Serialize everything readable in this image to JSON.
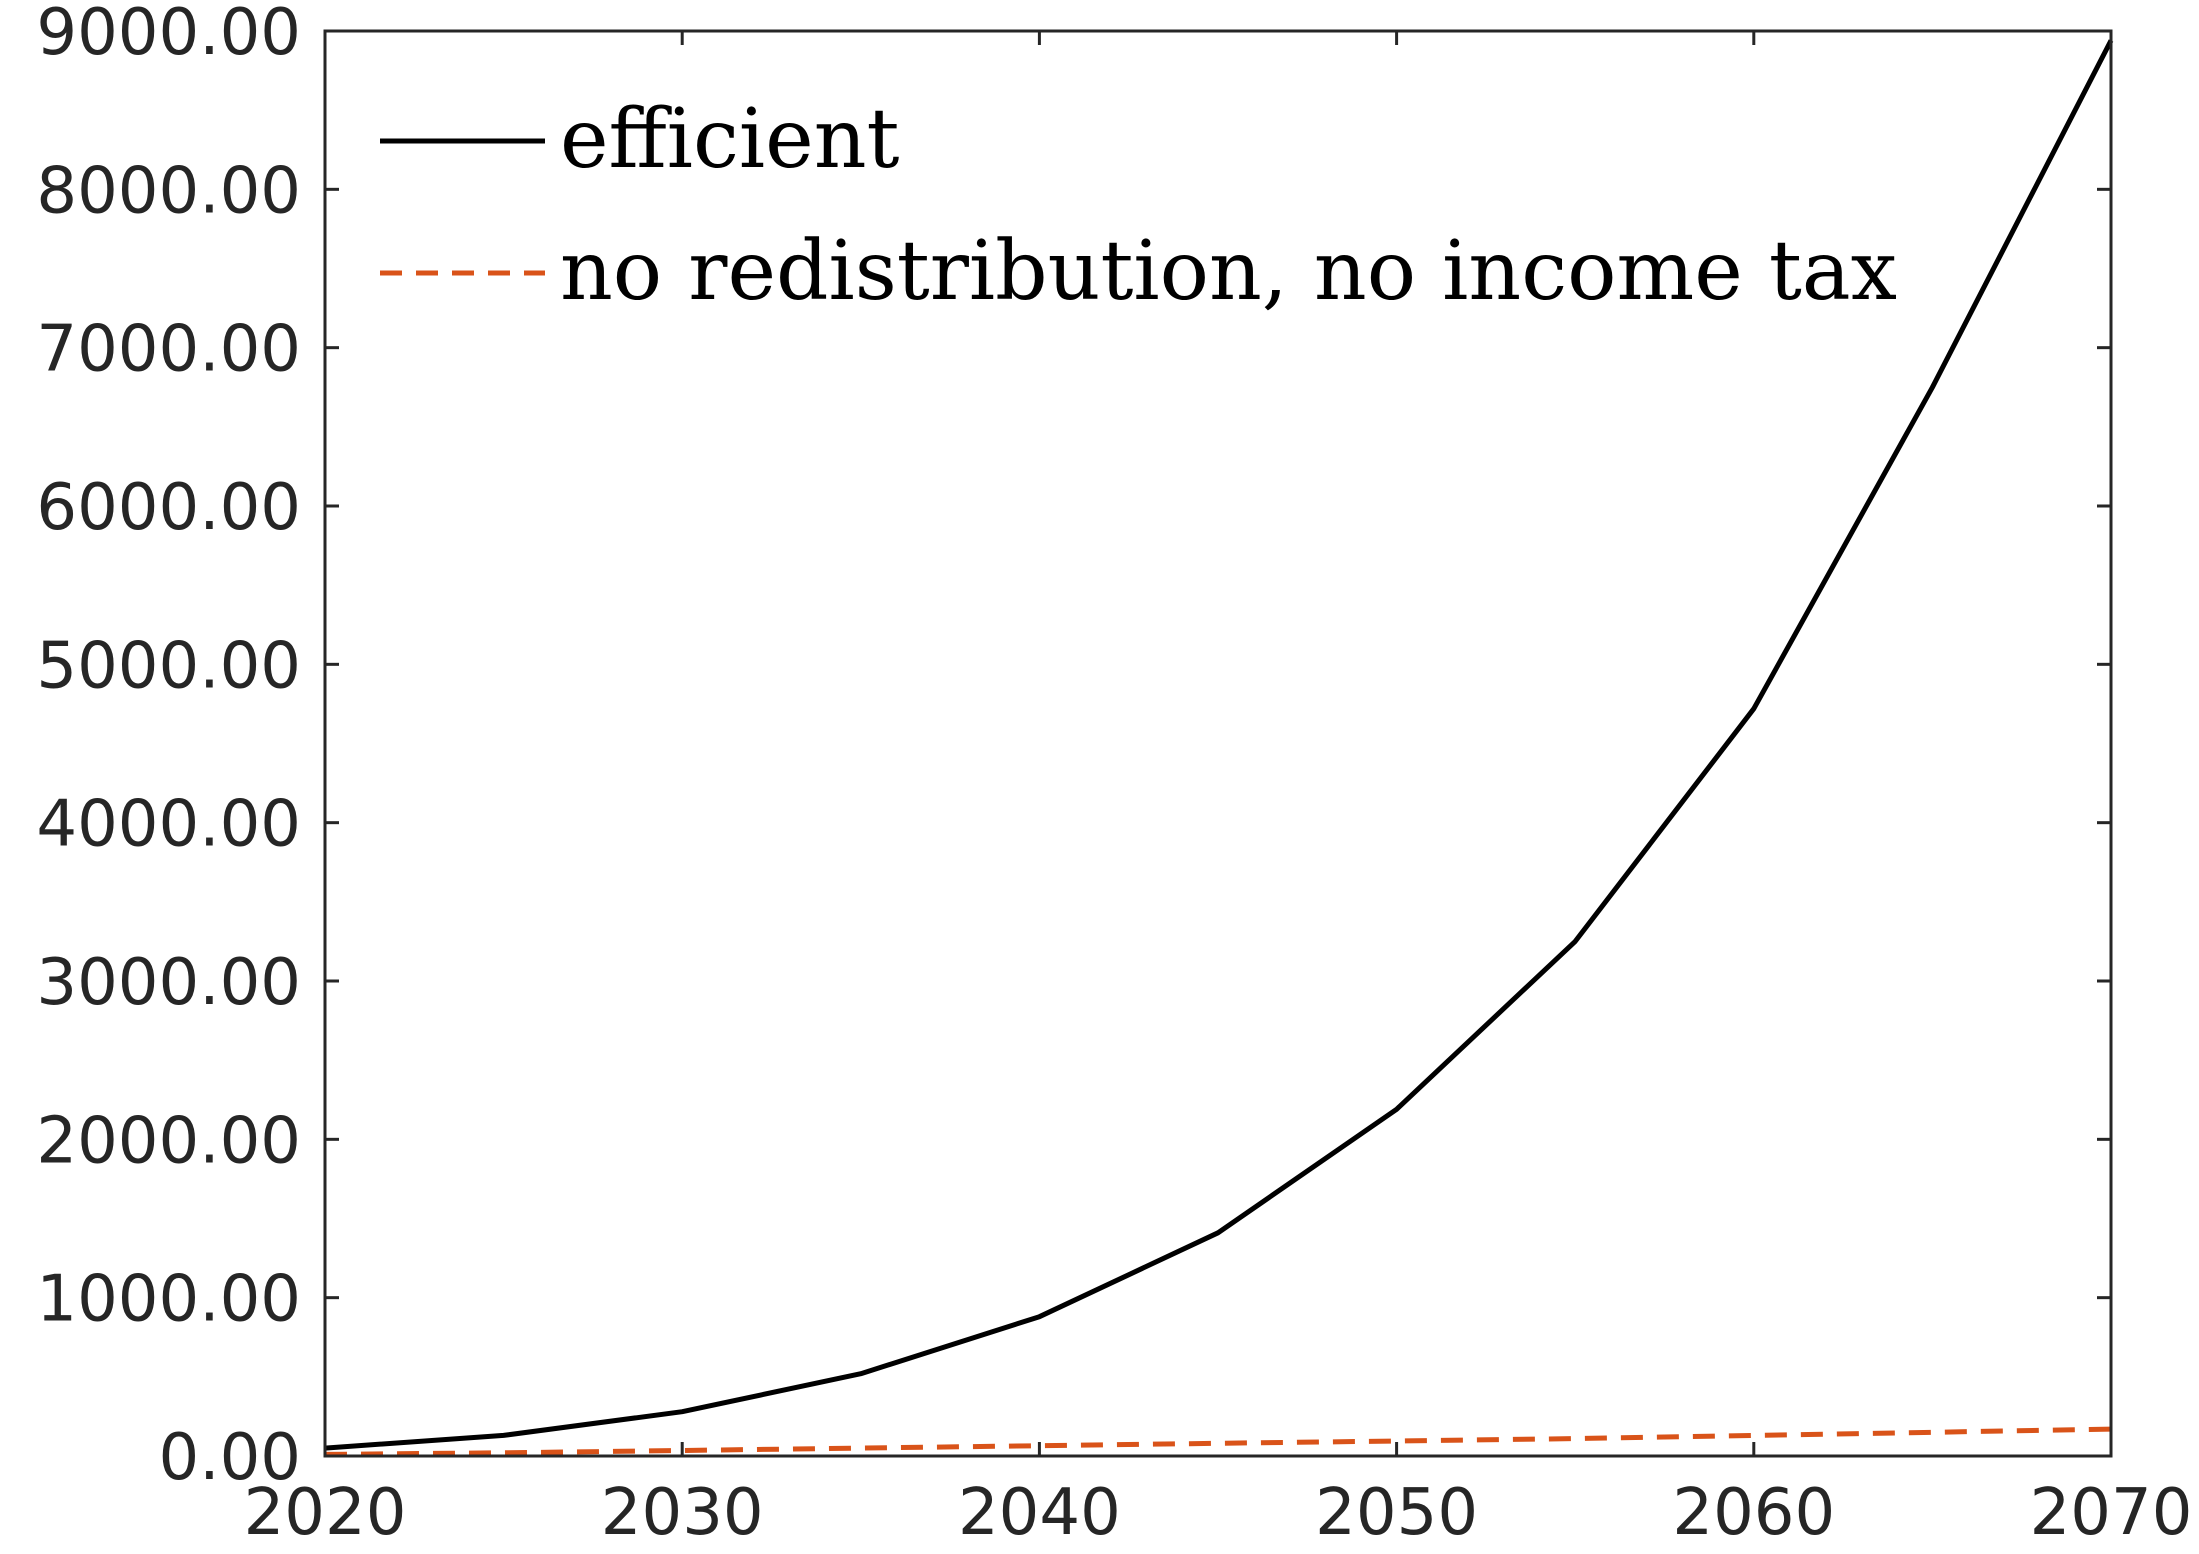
{
  "chart_data": {
    "type": "line",
    "title": "",
    "xlabel": "",
    "ylabel": "",
    "xlim": [
      2020,
      2070
    ],
    "ylim": [
      0,
      9000
    ],
    "x_ticks": [
      2020,
      2030,
      2040,
      2050,
      2060,
      2070
    ],
    "x_tick_labels": [
      "2020",
      "2030",
      "2040",
      "2050",
      "2060",
      "2070"
    ],
    "y_ticks": [
      0,
      1000,
      2000,
      3000,
      4000,
      5000,
      6000,
      7000,
      8000,
      9000
    ],
    "y_tick_labels": [
      "0.00",
      "1000.00",
      "2000.00",
      "3000.00",
      "4000.00",
      "5000.00",
      "6000.00",
      "7000.00",
      "8000.00",
      "9000.00"
    ],
    "grid": false,
    "legend_position": "top-left",
    "x": [
      2020,
      2025,
      2030,
      2035,
      2040,
      2045,
      2050,
      2055,
      2060,
      2065,
      2070
    ],
    "series": [
      {
        "name": "efficient",
        "color": "#000000",
        "style": "solid",
        "values": [
          50,
          130,
          280,
          520,
          880,
          1410,
          2190,
          3250,
          4720,
          6750,
          8940
        ]
      },
      {
        "name": "no redistribution, no income tax",
        "color": "#D95319",
        "style": "dashed",
        "values": [
          10,
          20,
          35,
          50,
          65,
          80,
          95,
          110,
          130,
          150,
          170
        ]
      }
    ]
  }
}
